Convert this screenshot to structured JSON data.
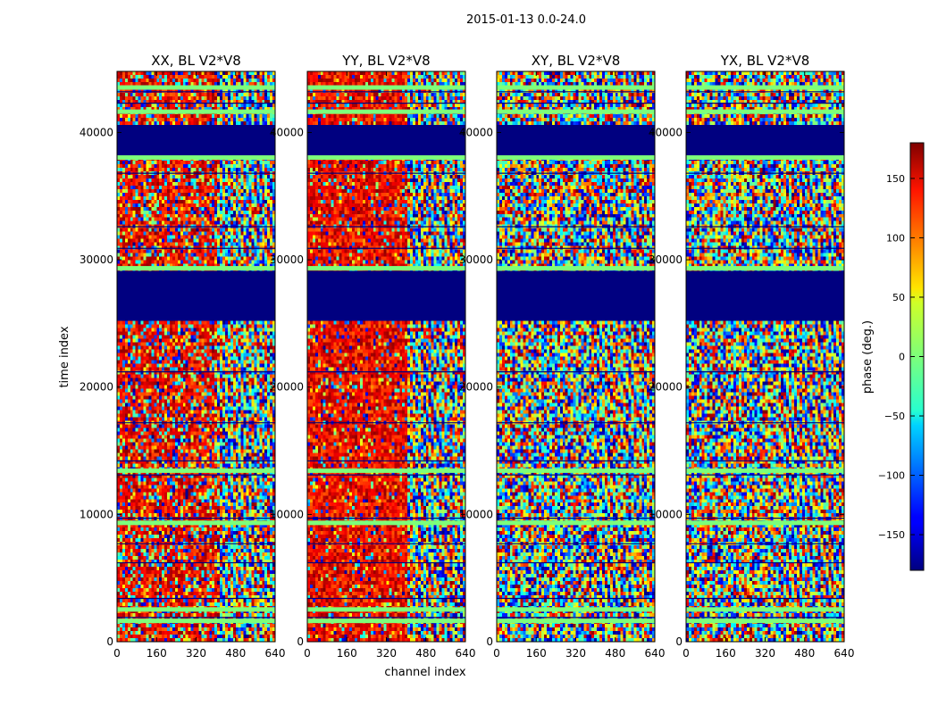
{
  "figure_title": "2015-01-13 0.0-24.0",
  "chart_data": {
    "type": "heatmap",
    "title": "2015-01-13 0.0-24.0",
    "xlabel": "channel index",
    "ylabel": "time index",
    "xlim": [
      0,
      640
    ],
    "ylim": [
      0,
      44800
    ],
    "x_ticks": [
      0,
      160,
      320,
      480,
      640
    ],
    "y_ticks": [
      0,
      10000,
      20000,
      30000,
      40000
    ],
    "panels": [
      {
        "name": "XX",
        "title": "XX, BL V2*V8",
        "warm_channel_max": 400,
        "warm_strength": 0.55
      },
      {
        "name": "YY",
        "title": "YY, BL V2*V8",
        "warm_channel_max": 400,
        "warm_strength": 0.8
      },
      {
        "name": "XY",
        "title": "XY, BL V2*V8",
        "warm_channel_max": 0,
        "warm_strength": 0
      },
      {
        "name": "YX",
        "title": "YX, BL V2*V8",
        "warm_channel_max": 0,
        "warm_strength": 0
      }
    ],
    "flagged_time_ranges": [
      [
        25300,
        29000
      ],
      [
        38200,
        40500
      ]
    ],
    "colorbar": {
      "label": "phase (deg.)",
      "colormap": "jet",
      "range": [
        -180,
        180
      ],
      "ticks": [
        -150,
        -100,
        -50,
        0,
        50,
        100,
        150
      ]
    }
  }
}
